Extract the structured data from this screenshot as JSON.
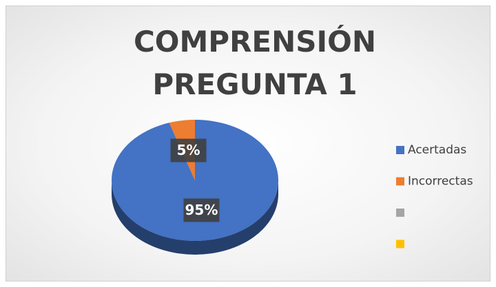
{
  "chart_data": {
    "type": "pie",
    "title": "COMPRENSIÓN PREGUNTA 1",
    "categories": [
      "Acertadas",
      "Incorrectas",
      null,
      null
    ],
    "values": [
      95,
      5,
      0,
      0
    ],
    "value_labels": [
      "95%",
      "5%",
      null,
      null
    ],
    "colors": [
      "#4472c4",
      "#ed7d31",
      "#a5a5a5",
      "#ffc000"
    ],
    "legend": "right"
  }
}
